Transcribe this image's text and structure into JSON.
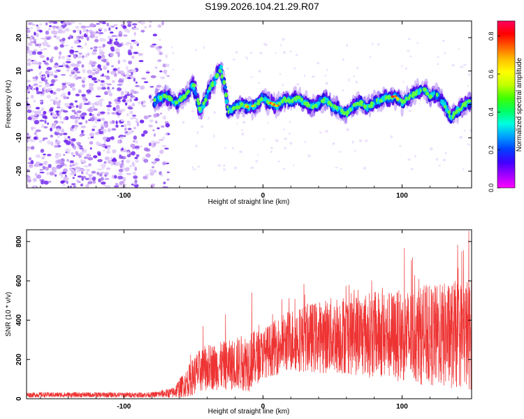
{
  "figure": {
    "title": "S199.2026.104.21.29.R07"
  },
  "chart_data": [
    {
      "type": "heatmap",
      "panel": "spectrogram",
      "xlabel": "Height of straight line (km)",
      "ylabel": "Frequency (Hz)",
      "xlim": [
        -170,
        150
      ],
      "ylim": [
        -25,
        25
      ],
      "xticks": [
        -100,
        0,
        100
      ],
      "yticks": [
        -20,
        -10,
        0,
        10,
        20
      ],
      "colorbar": {
        "label": "Normalized spectral amplitude",
        "range": [
          0,
          0.88
        ],
        "ticks": [
          0.0,
          0.2,
          0.4,
          0.6,
          0.8
        ],
        "colormap": [
          "#ff00ff",
          "#a000ff",
          "#4000ff",
          "#0040ff",
          "#00a0ff",
          "#00ffe0",
          "#00ff60",
          "#40ff00",
          "#c0ff00",
          "#ffff00",
          "#ffc000",
          "#ff6000",
          "#ff0000",
          "#ff0060"
        ]
      },
      "noise_region_km": [
        -170,
        -75
      ],
      "signal_trace": [
        {
          "x": -78,
          "y": 1.0
        },
        {
          "x": -70,
          "y": 2.5
        },
        {
          "x": -62,
          "y": 0.5
        },
        {
          "x": -55,
          "y": 3.0
        },
        {
          "x": -50,
          "y": 6.0
        },
        {
          "x": -45,
          "y": -2.5
        },
        {
          "x": -40,
          "y": 3.0
        },
        {
          "x": -35,
          "y": 7.0
        },
        {
          "x": -30,
          "y": 11.0
        },
        {
          "x": -25,
          "y": -2.0
        },
        {
          "x": -20,
          "y": -1.0
        },
        {
          "x": -15,
          "y": 0.0
        },
        {
          "x": -10,
          "y": -1.0
        },
        {
          "x": -5,
          "y": 0.0
        },
        {
          "x": 0,
          "y": 2.0
        },
        {
          "x": 5,
          "y": 0.5
        },
        {
          "x": 10,
          "y": -0.5
        },
        {
          "x": 15,
          "y": 1.5
        },
        {
          "x": 20,
          "y": 1.0
        },
        {
          "x": 25,
          "y": 2.0
        },
        {
          "x": 30,
          "y": 0.5
        },
        {
          "x": 35,
          "y": -1.0
        },
        {
          "x": 40,
          "y": 0.5
        },
        {
          "x": 45,
          "y": 1.5
        },
        {
          "x": 50,
          "y": -0.5
        },
        {
          "x": 55,
          "y": -1.5
        },
        {
          "x": 60,
          "y": -3.0
        },
        {
          "x": 65,
          "y": -0.5
        },
        {
          "x": 70,
          "y": 0.5
        },
        {
          "x": 75,
          "y": -1.0
        },
        {
          "x": 80,
          "y": 0.5
        },
        {
          "x": 85,
          "y": 1.5
        },
        {
          "x": 90,
          "y": 2.0
        },
        {
          "x": 95,
          "y": 2.5
        },
        {
          "x": 100,
          "y": 0.5
        },
        {
          "x": 105,
          "y": 2.0
        },
        {
          "x": 110,
          "y": 3.5
        },
        {
          "x": 115,
          "y": 5.0
        },
        {
          "x": 120,
          "y": 2.5
        },
        {
          "x": 125,
          "y": 3.0
        },
        {
          "x": 130,
          "y": 0.5
        },
        {
          "x": 135,
          "y": -4.0
        },
        {
          "x": 140,
          "y": -2.0
        },
        {
          "x": 145,
          "y": 0.0
        },
        {
          "x": 150,
          "y": 1.0
        }
      ],
      "peak_amplitude_km": [
        -10,
        8,
        95
      ]
    },
    {
      "type": "line",
      "panel": "snr",
      "xlabel": "Height of straight line (km)",
      "ylabel": "SNR (10 * v/v)",
      "xlim": [
        -170,
        150
      ],
      "ylim": [
        0,
        860
      ],
      "xticks": [
        -100,
        0,
        100
      ],
      "yticks": [
        0,
        200,
        400,
        600,
        800
      ],
      "color": "#ee3333",
      "envelope": [
        {
          "x": -170,
          "base": 20,
          "spread": 15
        },
        {
          "x": -80,
          "base": 20,
          "spread": 15
        },
        {
          "x": -65,
          "base": 30,
          "spread": 30
        },
        {
          "x": -55,
          "base": 80,
          "spread": 80
        },
        {
          "x": -48,
          "base": 130,
          "spread": 120
        },
        {
          "x": -40,
          "base": 160,
          "spread": 130
        },
        {
          "x": -25,
          "base": 170,
          "spread": 140
        },
        {
          "x": -10,
          "base": 190,
          "spread": 170
        },
        {
          "x": 0,
          "base": 230,
          "spread": 140
        },
        {
          "x": 20,
          "base": 300,
          "spread": 180
        },
        {
          "x": 60,
          "base": 330,
          "spread": 230
        },
        {
          "x": 100,
          "base": 320,
          "spread": 260
        },
        {
          "x": 130,
          "base": 320,
          "spread": 300
        },
        {
          "x": 150,
          "base": 330,
          "spread": 320
        }
      ],
      "spikes": [
        {
          "x": -52,
          "y": 225
        },
        {
          "x": -43,
          "y": 370
        },
        {
          "x": -27,
          "y": 430
        },
        {
          "x": -8,
          "y": 540
        },
        {
          "x": 30,
          "y": 530
        },
        {
          "x": 62,
          "y": 580
        },
        {
          "x": 112,
          "y": 610
        },
        {
          "x": 143,
          "y": 750
        },
        {
          "x": 148,
          "y": 855
        }
      ]
    }
  ]
}
